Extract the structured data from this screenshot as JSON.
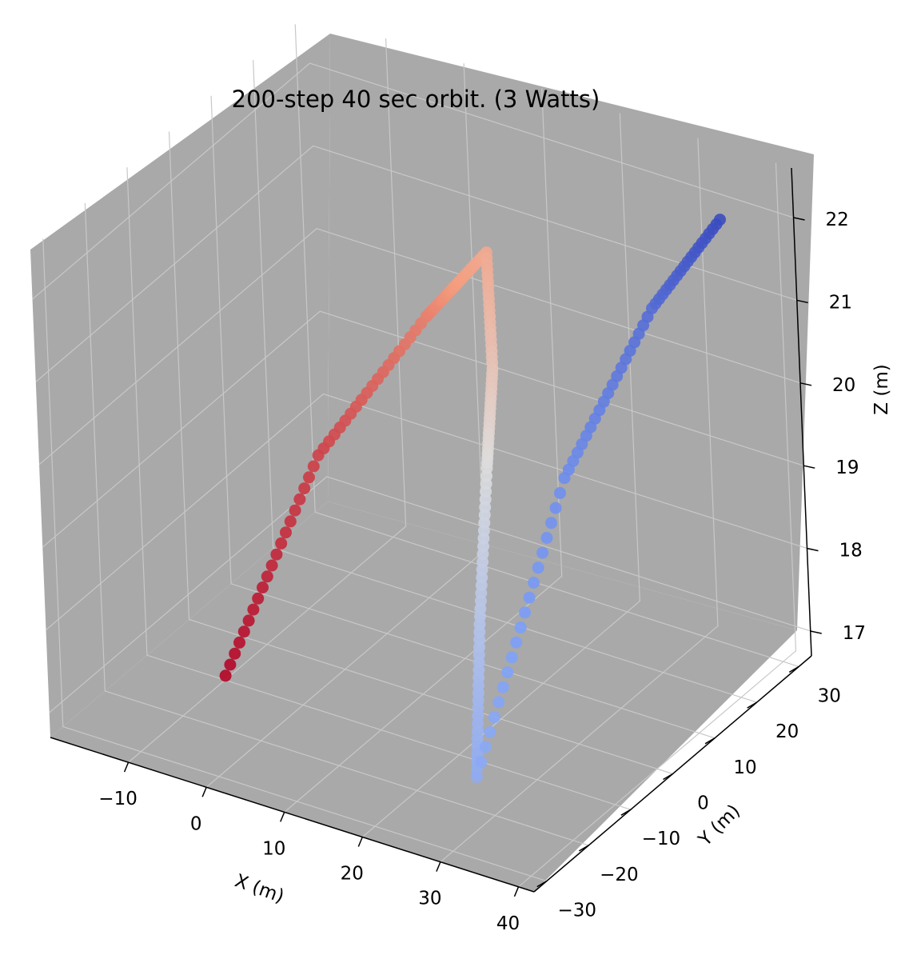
{
  "chart_data": {
    "type": "scatter",
    "projection": "3d",
    "title": "200-step 40 sec orbit. (3 Watts)",
    "xlabel": "X (m)",
    "ylabel": "Y (m)",
    "zlabel": "Z (m)",
    "xlim": [
      -20,
      42
    ],
    "ylim": [
      -33,
      33
    ],
    "zlim": [
      16.7,
      22.6
    ],
    "xticks": [
      -10,
      0,
      10,
      20,
      30,
      40
    ],
    "yticks": [
      -30,
      -20,
      -10,
      0,
      10,
      20,
      30
    ],
    "zticks": [
      17,
      18,
      19,
      20,
      21,
      22
    ],
    "xtick_labels": [
      "−10",
      "0",
      "10",
      "20",
      "30",
      "40"
    ],
    "ytick_labels": [
      "−30",
      "−20",
      "−10",
      "0",
      "10",
      "20",
      "30"
    ],
    "ztick_labels": [
      "17",
      "18",
      "19",
      "20",
      "21",
      "22"
    ],
    "grid": true,
    "pane_color": "#a9a9a9",
    "colormap": "coolwarm",
    "n_points": 200,
    "description_of_path": "spiral orbit rising from Z 17 to 22.3",
    "series": [
      {
        "segments": [
          {
            "from": [
              -2,
              -24,
              17.6
            ],
            "to": [
              5,
              -13,
              20.0
            ]
          },
          {
            "from": [
              5,
              -13,
              20.0
            ],
            "to": [
              13,
              -1,
              21.4
            ]
          },
          {
            "from": [
              13,
              -1,
              21.4
            ],
            "to": [
              20,
              1,
              22.3
            ]
          },
          {
            "from": [
              20,
              1,
              22.3
            ],
            "to": [
              23,
              -4,
              21.2
            ]
          },
          {
            "from": [
              23,
              -4,
              21.2
            ],
            "to": [
              24,
              -8,
              20.2
            ]
          },
          {
            "from": [
              24,
              -8,
              20.2
            ],
            "to": [
              24.5,
              -12,
              18.5
            ]
          },
          {
            "from": [
              24.5,
              -12,
              18.5
            ],
            "to": [
              25,
              -15,
              16.8
            ]
          },
          {
            "from": [
              25,
              -15,
              16.8
            ],
            "to": [
              29.5,
              0,
              19.9
            ]
          },
          {
            "from": [
              29.5,
              0,
              19.9
            ],
            "to": [
              35,
              12,
              21.6
            ]
          },
          {
            "from": [
              35,
              12,
              21.6
            ],
            "to": [
              38,
              24,
              22.3
            ]
          }
        ]
      }
    ]
  }
}
